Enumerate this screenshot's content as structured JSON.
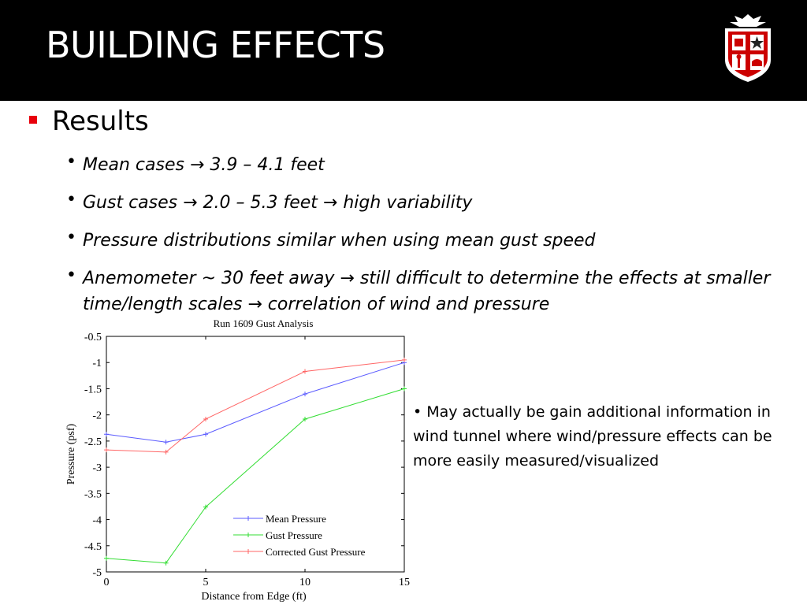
{
  "slide": {
    "title": "BUILDING EFFECTS",
    "heading": "Results",
    "bullets": [
      "Mean cases  → 3.9 – 4.1 feet",
      "Gust cases  → 2.0 – 5.3 feet  → high variability",
      "Pressure distributions similar when using mean gust speed",
      "Anemometer ~ 30 feet away  → still difficult to determine the effects at smaller",
      "time/length scales  → correlation of wind and pressure"
    ],
    "side_note": "• May actually be gain additional information in wind tunnel where wind/pressure effects can be more easily measured/visualized",
    "logo_icon": "university-shield-logo",
    "colors": {
      "header_bg": "#000000",
      "accent": "#e8000b"
    }
  },
  "chart_data": {
    "type": "line",
    "title": "Run 1609 Gust Analysis",
    "xlabel": "Distance from Edge (ft)",
    "ylabel": "Pressure (psf)",
    "xlim": [
      0,
      15
    ],
    "ylim": [
      -5,
      -0.5
    ],
    "y_reversed": true,
    "xticks": [
      "0",
      "5",
      "10",
      "15"
    ],
    "yticks": [
      "-0.5",
      "-1",
      "-1.5",
      "-2",
      "-2.5",
      "-3",
      "-3.5",
      "-4",
      "-4.5",
      "-5"
    ],
    "grid": false,
    "legend_position": "bottom-right",
    "x": [
      0,
      3,
      5,
      10,
      15
    ],
    "series": [
      {
        "name": "Mean Pressure",
        "color": "#5b5bff",
        "values": [
          -2.37,
          -2.52,
          -2.37,
          -1.6,
          -1.0
        ]
      },
      {
        "name": "Gust Pressure",
        "color": "#33dd33",
        "values": [
          -4.74,
          -4.83,
          -3.76,
          -2.08,
          -1.5
        ]
      },
      {
        "name": "Corrected Gust Pressure",
        "color": "#ff6666",
        "values": [
          -2.67,
          -2.71,
          -2.08,
          -1.17,
          -0.95
        ]
      }
    ]
  }
}
